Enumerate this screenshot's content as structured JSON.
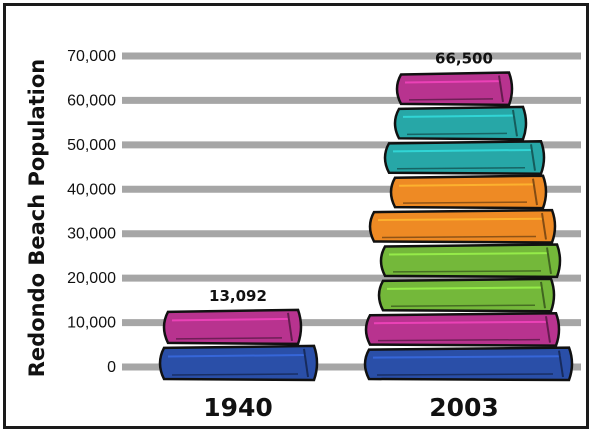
{
  "chart_data": {
    "type": "bar",
    "ylabel": "Redondo Beach Population",
    "xlabel": "",
    "ylim": [
      0,
      70000
    ],
    "yticks": [
      "0",
      "10,000",
      "20,000",
      "30,000",
      "40,000",
      "50,000",
      "60,000",
      "70,000"
    ],
    "ytick_values": [
      0,
      10000,
      20000,
      30000,
      40000,
      50000,
      60000,
      70000
    ],
    "categories": [
      "1940",
      "2003"
    ],
    "values": [
      13092,
      66500
    ],
    "data_labels": [
      "13,092",
      "66,500"
    ],
    "grid": true,
    "bar_style": "stacked books",
    "book_colors": [
      "#2a4fa8",
      "#b8338f",
      "#74b83a",
      "#ee8a24",
      "#27a7a7"
    ]
  }
}
